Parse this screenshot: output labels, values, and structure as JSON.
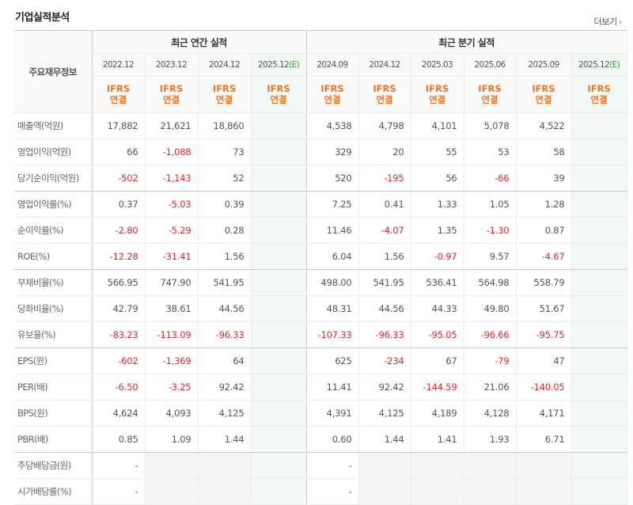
{
  "header": {
    "title": "기업실적분석",
    "more_label": "더보기"
  },
  "table": {
    "label_header": "주요재무정보",
    "groups": {
      "annual": "최근 연간 실적",
      "quarter": "최근 분기 실적"
    },
    "periods": [
      {
        "date": "2022.12",
        "est": ""
      },
      {
        "date": "2023.12",
        "est": ""
      },
      {
        "date": "2024.12",
        "est": ""
      },
      {
        "date": "2025.12",
        "est": "(E)"
      },
      {
        "date": "2024.09",
        "est": ""
      },
      {
        "date": "2024.12",
        "est": ""
      },
      {
        "date": "2025.03",
        "est": ""
      },
      {
        "date": "2025.06",
        "est": ""
      },
      {
        "date": "2025.09",
        "est": ""
      },
      {
        "date": "2025.12",
        "est": "(E)"
      }
    ],
    "basis_line1": "IFRS",
    "basis_line2": "연결",
    "rows": [
      {
        "label": "매출액(억원)",
        "values": [
          "17,882",
          "21,621",
          "18,860",
          "",
          "4,538",
          "4,798",
          "4,101",
          "5,078",
          "4,522",
          ""
        ]
      },
      {
        "label": "영업이익(억원)",
        "values": [
          "66",
          "-1,088",
          "73",
          "",
          "329",
          "20",
          "55",
          "53",
          "58",
          ""
        ]
      },
      {
        "label": "당기순이익(억원)",
        "values": [
          "-502",
          "-1,143",
          "52",
          "",
          "520",
          "-195",
          "56",
          "-66",
          "39",
          ""
        ]
      },
      {
        "label": "영업이익률(%)",
        "values": [
          "0.37",
          "-5.03",
          "0.39",
          "",
          "7.25",
          "0.41",
          "1.33",
          "1.05",
          "1.28",
          ""
        ]
      },
      {
        "label": "순이익률(%)",
        "values": [
          "-2.80",
          "-5.29",
          "0.28",
          "",
          "11.46",
          "-4.07",
          "1.35",
          "-1.30",
          "0.87",
          ""
        ]
      },
      {
        "label": "ROE(%)",
        "values": [
          "-12.28",
          "-31.41",
          "1.56",
          "",
          "6.04",
          "1.56",
          "-0.97",
          "9.57",
          "-4.67",
          ""
        ]
      },
      {
        "label": "부채비율(%)",
        "values": [
          "566.95",
          "747.90",
          "541.95",
          "",
          "498.00",
          "541.95",
          "536.41",
          "564.98",
          "558.79",
          ""
        ]
      },
      {
        "label": "당좌비율(%)",
        "values": [
          "42.79",
          "38.61",
          "44.56",
          "",
          "48.31",
          "44.56",
          "44.33",
          "49.80",
          "51.67",
          ""
        ]
      },
      {
        "label": "유보율(%)",
        "values": [
          "-83.23",
          "-113.09",
          "-96.33",
          "",
          "-107.33",
          "-96.33",
          "-95.05",
          "-96.66",
          "-95.75",
          ""
        ]
      },
      {
        "label": "EPS(원)",
        "values": [
          "-602",
          "-1,369",
          "64",
          "",
          "625",
          "-234",
          "67",
          "-79",
          "47",
          ""
        ]
      },
      {
        "label": "PER(배)",
        "values": [
          "-6.50",
          "-3.25",
          "92.42",
          "",
          "11.41",
          "92.42",
          "-144.59",
          "21.06",
          "-140.05",
          ""
        ]
      },
      {
        "label": "BPS(원)",
        "values": [
          "4,624",
          "4,093",
          "4,125",
          "",
          "4,391",
          "4,125",
          "4,189",
          "4,128",
          "4,171",
          ""
        ]
      },
      {
        "label": "PBR(배)",
        "values": [
          "0.85",
          "1.09",
          "1.44",
          "",
          "0.60",
          "1.44",
          "1.41",
          "1.93",
          "6.71",
          ""
        ]
      },
      {
        "label": "주당배당금(원)",
        "values": [
          "-",
          "",
          "",
          "",
          "-",
          "",
          "",
          "",
          "",
          ""
        ]
      },
      {
        "label": "시가배당률(%)",
        "values": [
          "-",
          "",
          "",
          "",
          "-",
          "",
          "",
          "",
          "",
          ""
        ]
      }
    ]
  },
  "colors": {
    "negative": "#e0262b",
    "ifrs": "#f07525",
    "estimate_bg": "#f2f8f3",
    "estimate_text": "#3a9a3a"
  }
}
